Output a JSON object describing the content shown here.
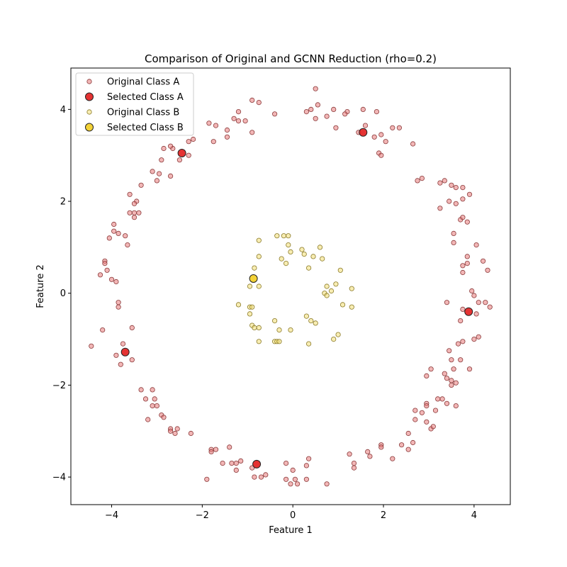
{
  "chart_data": {
    "type": "scatter",
    "title": "Comparison of Original and GCNN Reduction (rho=0.2)",
    "xlabel": "Feature 1",
    "ylabel": "Feature 2",
    "xlim": [
      -4.9,
      4.8
    ],
    "ylim": [
      -4.6,
      4.9
    ],
    "xticks": [
      -4,
      -2,
      0,
      2,
      4
    ],
    "yticks": [
      -4,
      -2,
      0,
      2,
      4
    ],
    "grid": false,
    "legend_position": "upper-left",
    "series": [
      {
        "name": "Original Class A",
        "kind": "original",
        "fill": "#e87a7a",
        "edge": "#8a3a3a",
        "opacity": 0.55,
        "points": [
          [
            0.5,
            4.45
          ],
          [
            0.3,
            3.95
          ],
          [
            0.55,
            4.1
          ],
          [
            0.75,
            3.85
          ],
          [
            0.4,
            4.0
          ],
          [
            0.5,
            3.8
          ],
          [
            -0.4,
            3.9
          ],
          [
            -0.9,
            4.2
          ],
          [
            -0.75,
            4.15
          ],
          [
            -0.9,
            3.5
          ],
          [
            -1.2,
            3.95
          ],
          [
            -1.2,
            3.75
          ],
          [
            -1.3,
            3.8
          ],
          [
            -1.05,
            3.75
          ],
          [
            -1.45,
            3.55
          ],
          [
            -1.45,
            3.4
          ],
          [
            -1.7,
            3.65
          ],
          [
            -1.85,
            3.7
          ],
          [
            -1.75,
            3.3
          ],
          [
            -2.2,
            3.35
          ],
          [
            -2.3,
            3.3
          ],
          [
            -2.3,
            3.0
          ],
          [
            -2.5,
            2.9
          ],
          [
            -2.65,
            3.15
          ],
          [
            -2.7,
            3.2
          ],
          [
            -2.85,
            3.15
          ],
          [
            -2.9,
            2.9
          ],
          [
            -3.1,
            2.65
          ],
          [
            -2.7,
            2.55
          ],
          [
            -2.95,
            2.6
          ],
          [
            -3.0,
            2.45
          ],
          [
            -3.35,
            2.35
          ],
          [
            -3.6,
            2.15
          ],
          [
            -3.45,
            2.0
          ],
          [
            -3.5,
            1.95
          ],
          [
            -3.5,
            1.75
          ],
          [
            -3.4,
            1.75
          ],
          [
            -3.6,
            1.75
          ],
          [
            -3.5,
            1.65
          ],
          [
            -3.7,
            1.25
          ],
          [
            -3.65,
            1.05
          ],
          [
            -3.95,
            1.5
          ],
          [
            -3.95,
            1.35
          ],
          [
            -4.05,
            1.2
          ],
          [
            -3.85,
            1.3
          ],
          [
            -4.15,
            0.7
          ],
          [
            -4.15,
            0.65
          ],
          [
            -4.1,
            0.5
          ],
          [
            -4.25,
            0.4
          ],
          [
            -4.0,
            0.3
          ],
          [
            -3.9,
            0.25
          ],
          [
            -3.85,
            -0.2
          ],
          [
            -3.85,
            -0.3
          ],
          [
            -3.55,
            -0.75
          ],
          [
            -4.2,
            -0.8
          ],
          [
            -4.45,
            -1.15
          ],
          [
            -3.75,
            -1.1
          ],
          [
            -3.9,
            -1.35
          ],
          [
            -3.55,
            -1.45
          ],
          [
            -3.8,
            -1.55
          ],
          [
            -3.35,
            -2.1
          ],
          [
            -3.1,
            -2.1
          ],
          [
            -3.25,
            -2.3
          ],
          [
            -3.05,
            -2.3
          ],
          [
            -3.1,
            -2.45
          ],
          [
            -3.0,
            -2.45
          ],
          [
            -2.9,
            -2.65
          ],
          [
            -3.2,
            -2.75
          ],
          [
            -2.85,
            -2.7
          ],
          [
            -2.7,
            -2.95
          ],
          [
            -2.7,
            -3.0
          ],
          [
            -2.55,
            -2.95
          ],
          [
            -2.6,
            -3.05
          ],
          [
            -2.25,
            -3.05
          ],
          [
            -1.8,
            -3.4
          ],
          [
            -1.8,
            -3.45
          ],
          [
            -1.7,
            -3.4
          ],
          [
            -1.4,
            -3.35
          ],
          [
            -1.55,
            -3.7
          ],
          [
            -1.35,
            -3.7
          ],
          [
            -1.25,
            -3.7
          ],
          [
            -1.15,
            -3.65
          ],
          [
            -1.25,
            -3.85
          ],
          [
            -1.9,
            -4.05
          ],
          [
            -0.9,
            -3.8
          ],
          [
            -0.85,
            -4.0
          ],
          [
            -0.7,
            -4.0
          ],
          [
            -0.6,
            -3.95
          ],
          [
            -0.15,
            -3.7
          ],
          [
            -0.15,
            -4.05
          ],
          [
            0.0,
            -3.85
          ],
          [
            0.05,
            -4.05
          ],
          [
            0.1,
            -4.15
          ],
          [
            -0.05,
            -4.15
          ],
          [
            0.3,
            -3.75
          ],
          [
            0.3,
            -4.05
          ],
          [
            0.35,
            -3.6
          ],
          [
            0.75,
            -4.15
          ],
          [
            1.25,
            -3.5
          ],
          [
            1.35,
            -3.7
          ],
          [
            1.35,
            -3.8
          ],
          [
            1.65,
            -3.45
          ],
          [
            1.7,
            -3.55
          ],
          [
            1.95,
            -3.3
          ],
          [
            1.95,
            -3.35
          ],
          [
            2.2,
            -3.6
          ],
          [
            2.4,
            -3.3
          ],
          [
            2.55,
            -3.05
          ],
          [
            2.55,
            -3.4
          ],
          [
            2.65,
            -3.25
          ],
          [
            2.7,
            -2.55
          ],
          [
            2.7,
            -2.75
          ],
          [
            2.85,
            -2.6
          ],
          [
            2.95,
            -2.4
          ],
          [
            2.95,
            -2.45
          ],
          [
            2.95,
            -2.8
          ],
          [
            3.05,
            -2.95
          ],
          [
            3.1,
            -2.9
          ],
          [
            3.15,
            -2.55
          ],
          [
            3.2,
            -2.3
          ],
          [
            3.3,
            -2.3
          ],
          [
            3.4,
            -2.4
          ],
          [
            3.5,
            -2.0
          ],
          [
            3.35,
            -1.75
          ],
          [
            3.4,
            -1.85
          ],
          [
            3.5,
            -1.9
          ],
          [
            3.6,
            -1.95
          ],
          [
            3.6,
            -2.45
          ],
          [
            3.05,
            -1.65
          ],
          [
            2.95,
            -1.8
          ],
          [
            3.45,
            -1.25
          ],
          [
            3.5,
            -1.45
          ],
          [
            3.55,
            -1.65
          ],
          [
            3.7,
            -1.45
          ],
          [
            3.65,
            -1.1
          ],
          [
            3.75,
            -1.05
          ],
          [
            3.9,
            -1.65
          ],
          [
            4.0,
            -1.0
          ],
          [
            4.1,
            -0.95
          ],
          [
            3.7,
            -0.6
          ],
          [
            3.75,
            -0.35
          ],
          [
            4.05,
            -0.45
          ],
          [
            4.1,
            -0.2
          ],
          [
            4.25,
            -0.2
          ],
          [
            4.35,
            -0.3
          ],
          [
            3.95,
            0.05
          ],
          [
            4.0,
            -0.05
          ],
          [
            3.4,
            -0.2
          ],
          [
            3.75,
            0.6
          ],
          [
            3.75,
            0.45
          ],
          [
            3.85,
            0.65
          ],
          [
            3.85,
            0.8
          ],
          [
            4.2,
            0.7
          ],
          [
            4.3,
            0.5
          ],
          [
            4.05,
            1.05
          ],
          [
            3.55,
            1.1
          ],
          [
            3.55,
            1.3
          ],
          [
            3.7,
            1.6
          ],
          [
            3.85,
            1.55
          ],
          [
            3.75,
            1.65
          ],
          [
            3.6,
            1.95
          ],
          [
            3.6,
            2.3
          ],
          [
            3.5,
            2.35
          ],
          [
            3.75,
            2.3
          ],
          [
            3.75,
            2.05
          ],
          [
            3.9,
            2.15
          ],
          [
            3.45,
            2.0
          ],
          [
            3.25,
            2.4
          ],
          [
            3.25,
            1.85
          ],
          [
            3.35,
            2.45
          ],
          [
            2.75,
            2.45
          ],
          [
            2.85,
            2.5
          ],
          [
            2.65,
            3.25
          ],
          [
            2.35,
            3.6
          ],
          [
            2.2,
            3.6
          ],
          [
            1.85,
            3.95
          ],
          [
            1.9,
            3.05
          ],
          [
            1.95,
            3.0
          ],
          [
            1.95,
            3.45
          ],
          [
            2.05,
            3.3
          ],
          [
            1.8,
            3.4
          ],
          [
            1.55,
            4.0
          ],
          [
            1.6,
            3.65
          ],
          [
            1.45,
            3.5
          ],
          [
            1.2,
            3.95
          ],
          [
            1.15,
            3.9
          ],
          [
            0.95,
            3.6
          ],
          [
            0.9,
            4.0
          ]
        ]
      },
      {
        "name": "Selected Class A",
        "kind": "selected",
        "fill": "#e32222",
        "edge": "#222222",
        "opacity": 0.92,
        "points": [
          [
            1.55,
            3.5
          ],
          [
            -2.45,
            3.05
          ],
          [
            -3.7,
            -1.28
          ],
          [
            -0.8,
            -3.72
          ],
          [
            3.88,
            -0.4
          ]
        ]
      },
      {
        "name": "Original Class B",
        "kind": "original",
        "fill": "#f3df72",
        "edge": "#8a7a2a",
        "opacity": 0.55,
        "points": [
          [
            -0.35,
            1.25
          ],
          [
            -0.2,
            1.25
          ],
          [
            -0.1,
            1.25
          ],
          [
            -0.75,
            1.15
          ],
          [
            -0.1,
            1.05
          ],
          [
            0.2,
            0.95
          ],
          [
            0.6,
            1.0
          ],
          [
            -0.05,
            0.9
          ],
          [
            0.25,
            0.85
          ],
          [
            0.45,
            0.8
          ],
          [
            -0.75,
            0.8
          ],
          [
            -0.25,
            0.75
          ],
          [
            0.65,
            0.75
          ],
          [
            -0.15,
            0.65
          ],
          [
            -0.85,
            0.55
          ],
          [
            0.35,
            0.55
          ],
          [
            1.05,
            0.5
          ],
          [
            -0.95,
            0.15
          ],
          [
            -0.75,
            0.15
          ],
          [
            0.75,
            0.15
          ],
          [
            0.95,
            0.2
          ],
          [
            0.85,
            0.05
          ],
          [
            1.3,
            0.1
          ],
          [
            0.7,
            0.0
          ],
          [
            0.75,
            -0.05
          ],
          [
            -1.2,
            -0.25
          ],
          [
            -0.95,
            -0.3
          ],
          [
            -0.9,
            -0.3
          ],
          [
            -0.95,
            -0.45
          ],
          [
            1.1,
            -0.25
          ],
          [
            1.3,
            -0.3
          ],
          [
            -0.4,
            -0.6
          ],
          [
            0.3,
            -0.5
          ],
          [
            0.4,
            -0.6
          ],
          [
            0.5,
            -0.65
          ],
          [
            -0.9,
            -0.7
          ],
          [
            -0.85,
            -0.75
          ],
          [
            -0.75,
            -0.75
          ],
          [
            -0.3,
            -0.8
          ],
          [
            -0.05,
            -0.8
          ],
          [
            1.0,
            -0.9
          ],
          [
            -0.75,
            -1.05
          ],
          [
            -0.4,
            -1.05
          ],
          [
            -0.35,
            -1.05
          ],
          [
            -0.3,
            -1.05
          ],
          [
            0.9,
            -1.0
          ],
          [
            0.35,
            -1.1
          ]
        ]
      },
      {
        "name": "Selected Class B",
        "kind": "selected",
        "fill": "#f2d02c",
        "edge": "#222222",
        "opacity": 0.95,
        "points": [
          [
            -0.87,
            0.32
          ]
        ]
      }
    ]
  }
}
